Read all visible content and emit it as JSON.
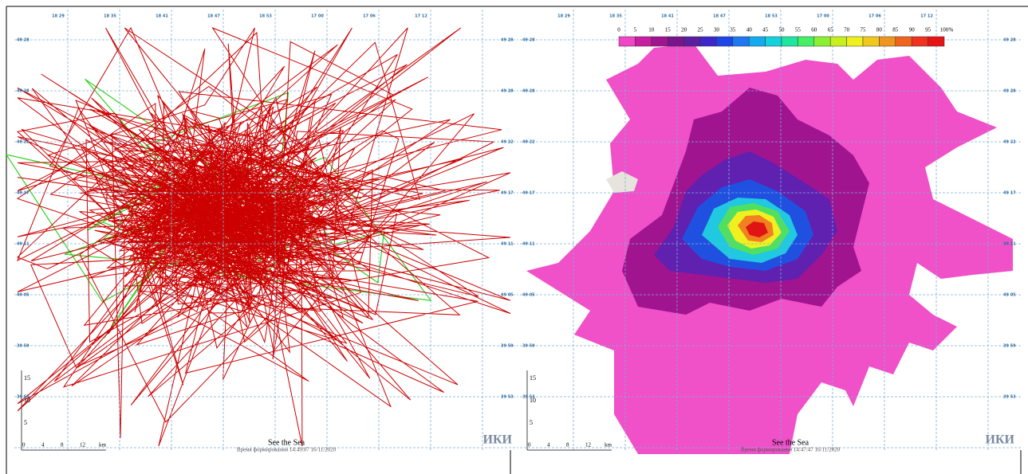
{
  "left_panel": {
    "top_labels": [
      "18 29",
      "18 35",
      "18 41",
      "18 47",
      "18 53",
      "17 00",
      "17 06",
      "17 12"
    ],
    "side_labels": [
      "49 28",
      "49 28",
      "49 22",
      "49 17",
      "49 11",
      "49 05",
      "39 59",
      "39 53"
    ],
    "footer_title": "See the Sea",
    "timestamp": "Время формирования 14:49:07 16/11/2020",
    "logo": "ИКИ",
    "scale_x": [
      "0",
      "4",
      "8",
      "12",
      "km"
    ],
    "scale_y": [
      "15",
      "10",
      "5"
    ]
  },
  "right_panel": {
    "top_labels": [
      "18 29",
      "18 35",
      "18 41",
      "18 47",
      "18 53",
      "17 00",
      "17 06",
      "17 12"
    ],
    "side_labels": [
      "49 28",
      "49 28",
      "49 22",
      "49 17",
      "49 11",
      "49 05",
      "39 59",
      "39 53"
    ],
    "footer_title": "See the Sea",
    "timestamp": "Время формирования 14:47:47 16/11/2020",
    "logo": "ИКИ",
    "scale_x": [
      "0",
      "4",
      "8",
      "12",
      "km"
    ],
    "scale_y": [
      "15",
      "10",
      "5"
    ],
    "colorbar": {
      "labels": [
        "0",
        "5",
        "10",
        "15",
        "20",
        "25",
        "30",
        "35",
        "40",
        "45",
        "50",
        "55",
        "60",
        "65",
        "70",
        "75",
        "80",
        "85",
        "90",
        "95",
        "100",
        "%"
      ],
      "colors": [
        "#f046c8",
        "#c81ea0",
        "#a01490",
        "#78148c",
        "#5a1ea0",
        "#3c28c8",
        "#1e46e6",
        "#1e78f0",
        "#14aaf0",
        "#14d2dc",
        "#1ee6a0",
        "#46f064",
        "#8cf032",
        "#c8f01e",
        "#f0f01e",
        "#f0c81e",
        "#f0961e",
        "#f0641e",
        "#f0321e",
        "#e61414"
      ]
    }
  }
}
